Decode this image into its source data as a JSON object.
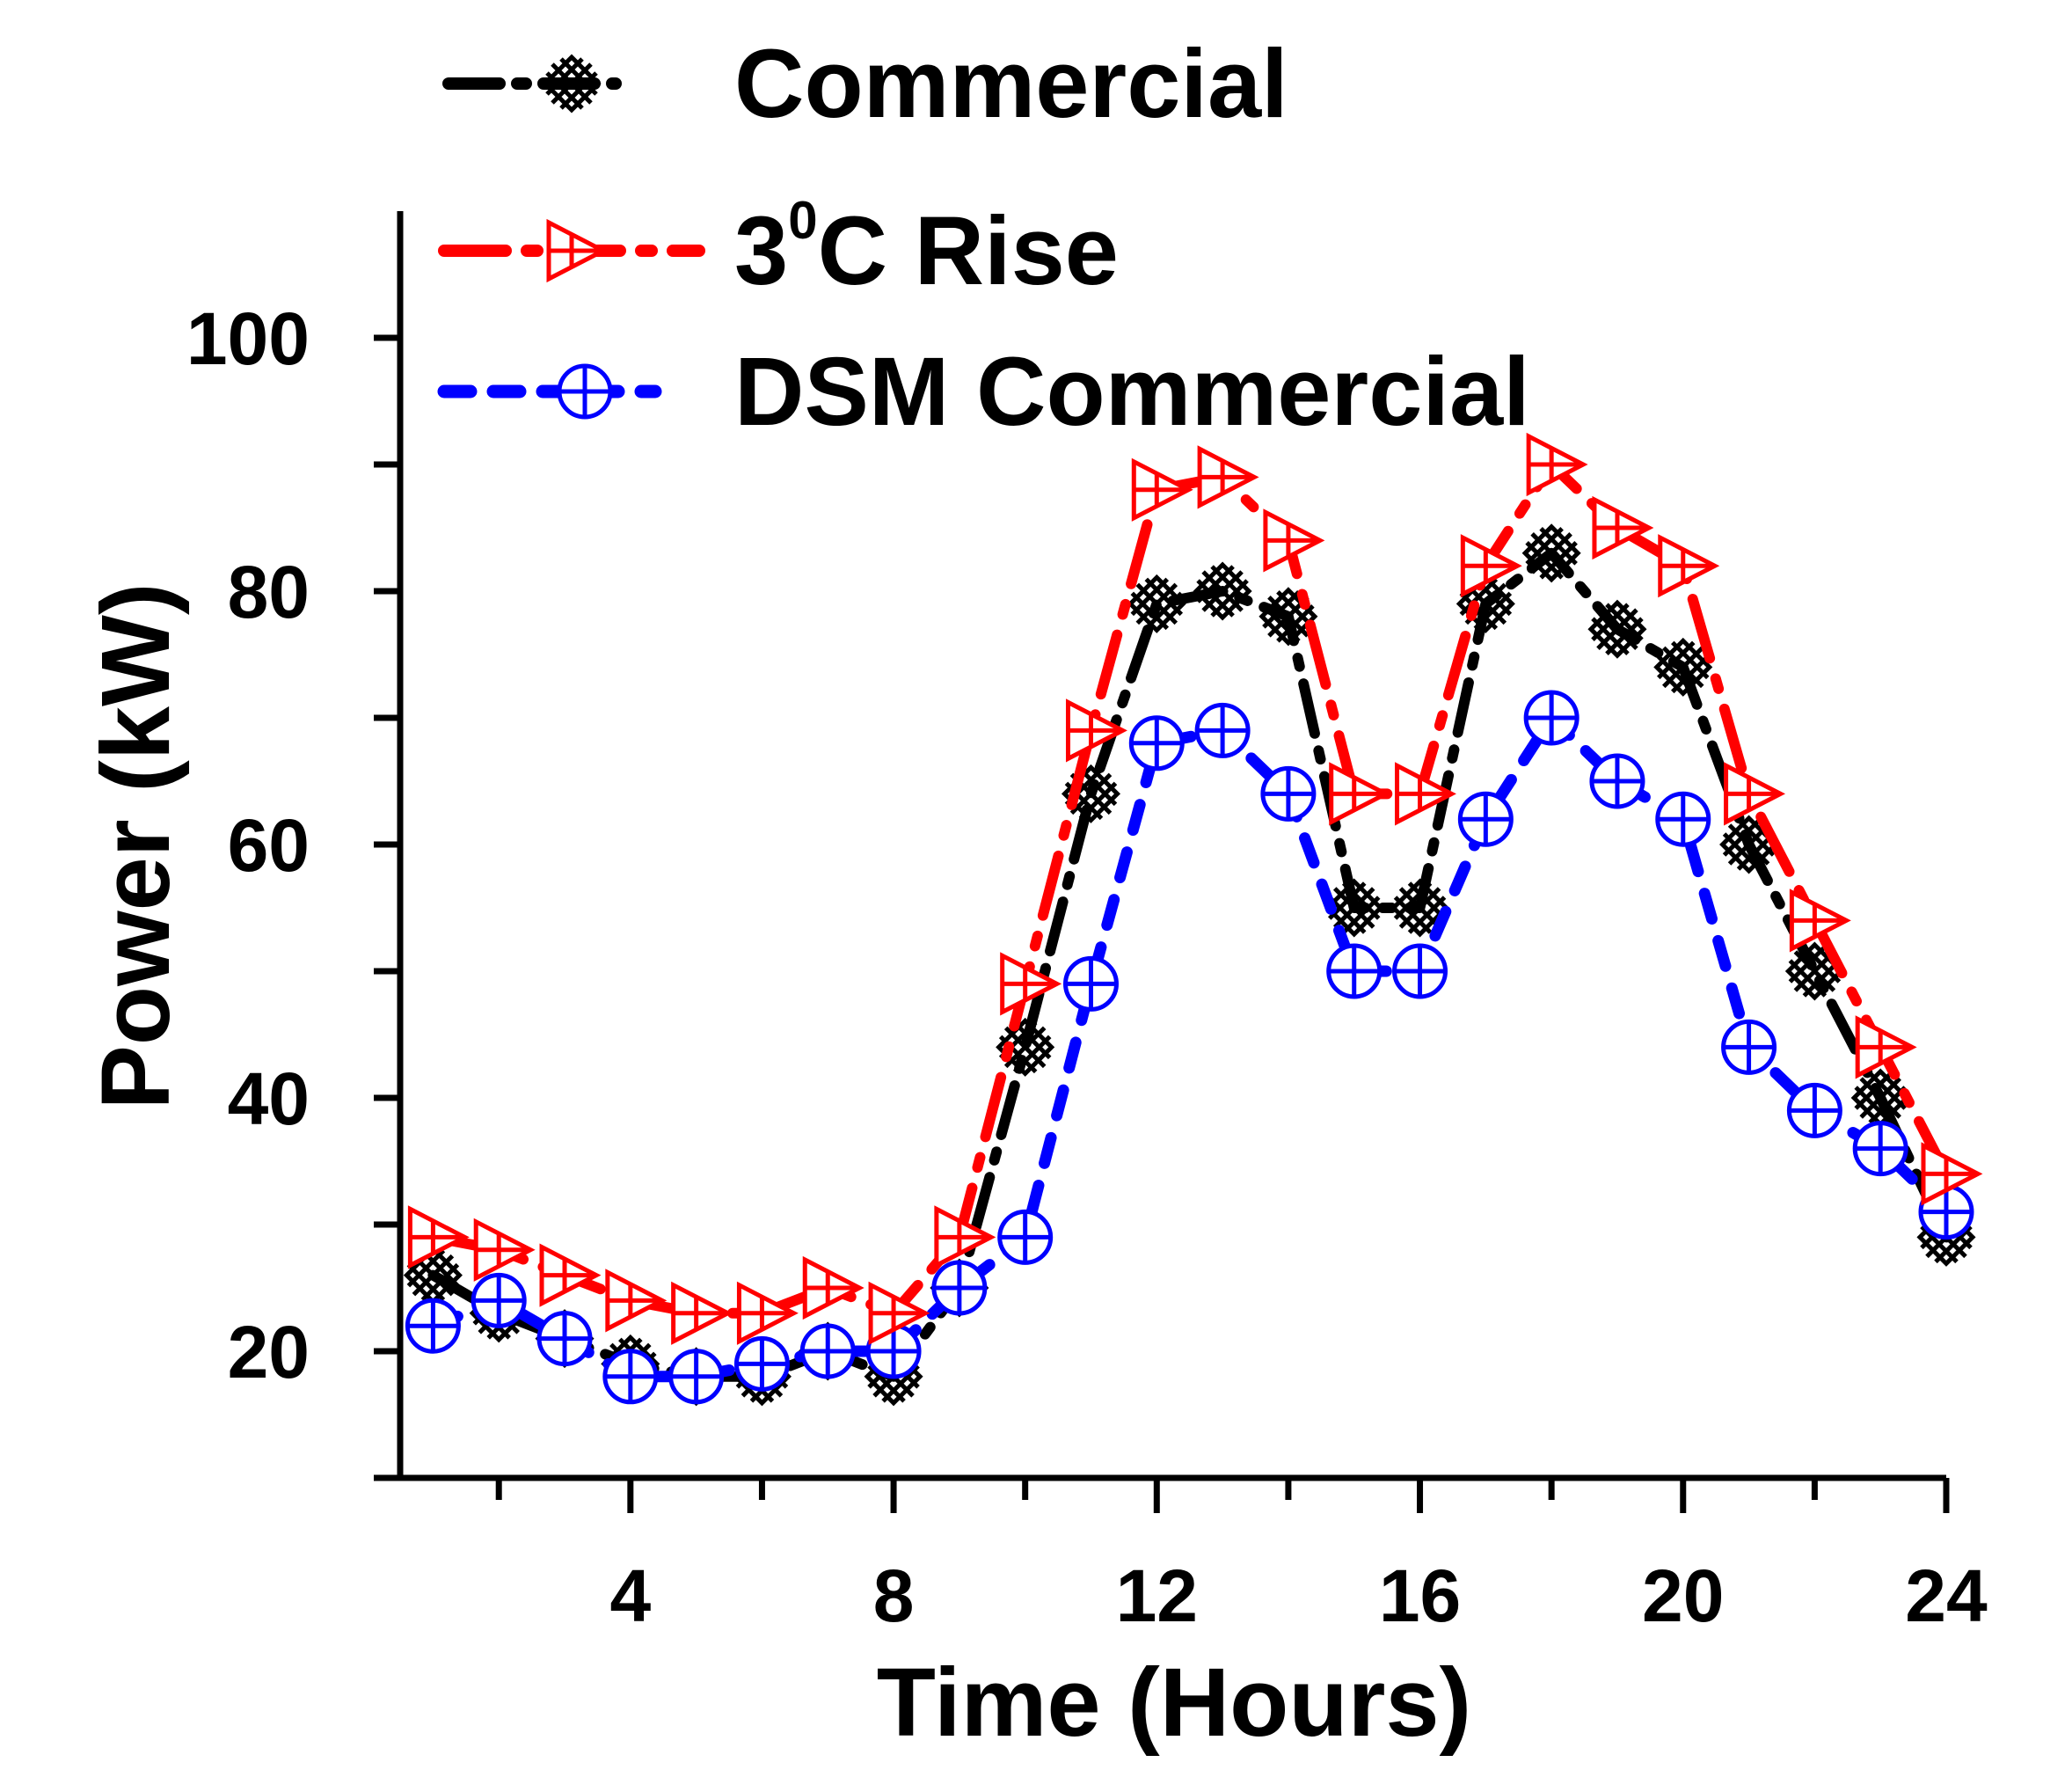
{
  "chart_data": {
    "type": "line",
    "xlabel": "Time (Hours)",
    "ylabel": "Power (kW)",
    "xlim": [
      0.5,
      24
    ],
    "ylim": [
      10,
      110
    ],
    "xticks": [
      4,
      8,
      12,
      16,
      20,
      24
    ],
    "xticks_minor": [
      2,
      6,
      10,
      14,
      18,
      22
    ],
    "yticks": [
      20,
      40,
      60,
      80,
      100
    ],
    "yticks_minor": [
      30,
      50,
      70,
      90
    ],
    "legend_placement": "top-left",
    "grid": false,
    "x": [
      1,
      2,
      3,
      4,
      5,
      6,
      7,
      8,
      9,
      10,
      11,
      12,
      13,
      14,
      15,
      16,
      17,
      18,
      19,
      20,
      21,
      22,
      23,
      24
    ],
    "series": [
      {
        "name": "Commercial",
        "color": "#000000",
        "marker": "x-diamond",
        "values": [
          26,
          23,
          21,
          19,
          18,
          18,
          20,
          18,
          25,
          44,
          64,
          79,
          80,
          78,
          55,
          55,
          79,
          83,
          77,
          74,
          60,
          50,
          40,
          29
        ]
      },
      {
        "name": "3°C Rise",
        "name_main": "3",
        "name_sup": "0",
        "name_tail": "C Rise",
        "color": "#ff0000",
        "marker": "triangle-right",
        "values": [
          29,
          28,
          26,
          24,
          23,
          23,
          25,
          23,
          29,
          49,
          69,
          88,
          89,
          84,
          64,
          64,
          82,
          90,
          85,
          82,
          64,
          54,
          44,
          34
        ]
      },
      {
        "name": "DSM Commercial",
        "color": "#0000ff",
        "marker": "circle-plus",
        "values": [
          22,
          24,
          21,
          18,
          18,
          19,
          20,
          20,
          25,
          29,
          49,
          68,
          69,
          64,
          50,
          50,
          62,
          70,
          65,
          62,
          44,
          39,
          36,
          31
        ]
      }
    ]
  }
}
